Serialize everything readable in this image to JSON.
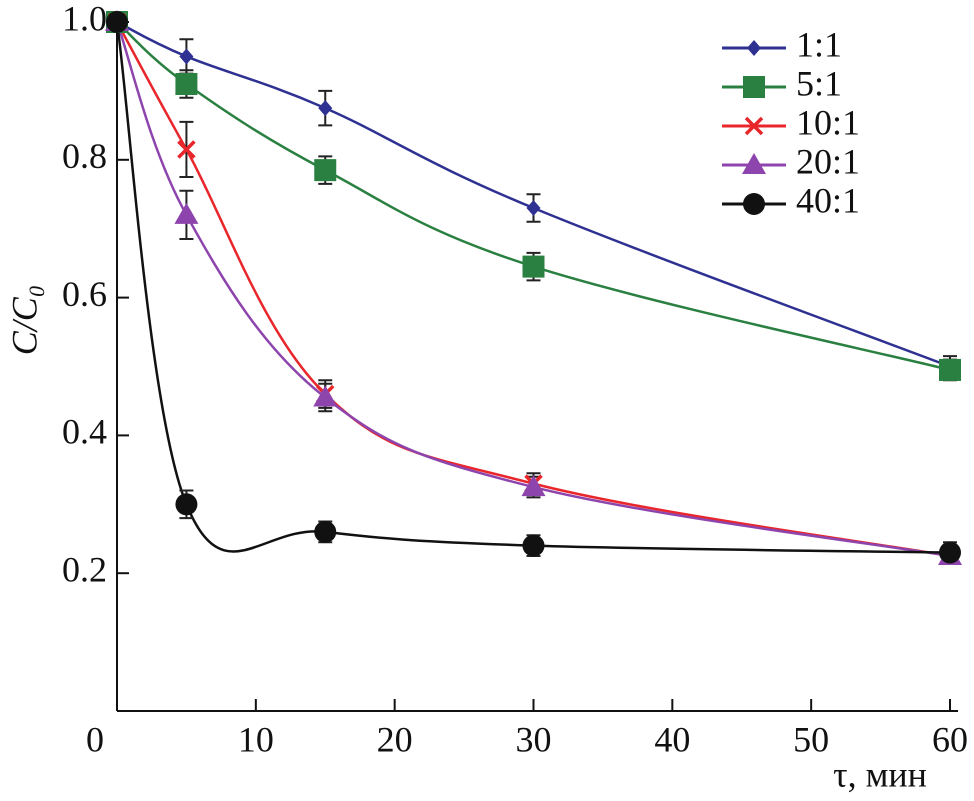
{
  "chart_data": {
    "type": "line",
    "x_label": "τ, мин",
    "y_label": "C/C₀",
    "x": [
      0,
      5,
      15,
      30,
      60
    ],
    "xlim": [
      0,
      60
    ],
    "xticks": [
      0,
      10,
      20,
      30,
      40,
      50,
      60
    ],
    "ylim": [
      0,
      1
    ],
    "yticks": [
      0.2,
      0.4,
      0.6,
      0.8,
      {
        "value": 1,
        "label": "1.0"
      }
    ],
    "grid": false,
    "legend": "upper right",
    "series": [
      {
        "name": "1:1",
        "color": "#2e3192",
        "marker": "diamond",
        "values": [
          1.0,
          0.95,
          0.875,
          0.73,
          0.5
        ],
        "errors": [
          0,
          0.025,
          0.025,
          0.02,
          0.015
        ]
      },
      {
        "name": "5:1",
        "color": "#2a8040",
        "marker": "square",
        "values": [
          1.0,
          0.91,
          0.785,
          0.645,
          0.495
        ],
        "errors": [
          0,
          0.02,
          0.02,
          0.02,
          0.015
        ]
      },
      {
        "name": "10:1",
        "color": "#e8262b",
        "marker": "x",
        "values": [
          1.0,
          0.815,
          0.46,
          0.33,
          0.225
        ],
        "errors": [
          0,
          0.04,
          0.02,
          0.015,
          0.01
        ]
      },
      {
        "name": "20:1",
        "color": "#8e44ad",
        "marker": "triangle",
        "values": [
          1.0,
          0.72,
          0.455,
          0.325,
          0.225
        ],
        "errors": [
          0,
          0.035,
          0.02,
          0.015,
          0.01
        ]
      },
      {
        "name": "40:1",
        "color": "#111111",
        "marker": "circle",
        "values": [
          1.0,
          0.3,
          0.26,
          0.24,
          0.23
        ],
        "errors": [
          0,
          0.02,
          0.015,
          0.015,
          0.015
        ]
      }
    ]
  }
}
